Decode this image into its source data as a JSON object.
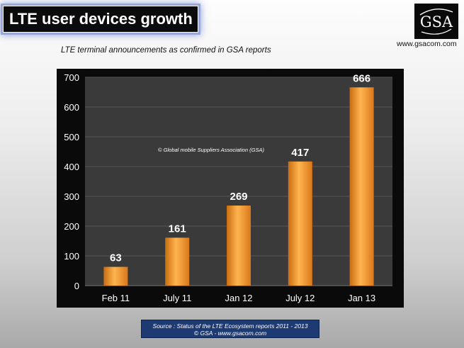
{
  "header": {
    "title": "LTE user devices growth",
    "subtitle": "LTE terminal announcements as confirmed in GSA reports"
  },
  "brand": {
    "logo_text": "GSA",
    "website": "www.gsacom.com"
  },
  "chart_data": {
    "type": "bar",
    "title": "",
    "categories": [
      "Feb 11",
      "July 11",
      "Jan 12",
      "July 12",
      "Jan 13"
    ],
    "values": [
      63,
      161,
      269,
      417,
      666
    ],
    "data_labels": [
      "63",
      "161",
      "269",
      "417",
      "666"
    ],
    "ylim": [
      0,
      700
    ],
    "yticks": [
      0,
      100,
      200,
      300,
      400,
      500,
      600,
      700
    ],
    "xlabel": "",
    "ylabel": "",
    "grid": true,
    "annotation": "© Global mobile Suppliers Association (GSA)",
    "bar_color": "#f29a2e",
    "background_color": "#3a3a3a"
  },
  "source": {
    "line1": "Source : Status of the LTE Ecosystem reports 2011 - 2013",
    "line2": "© GSA - www.gsacom.com"
  }
}
